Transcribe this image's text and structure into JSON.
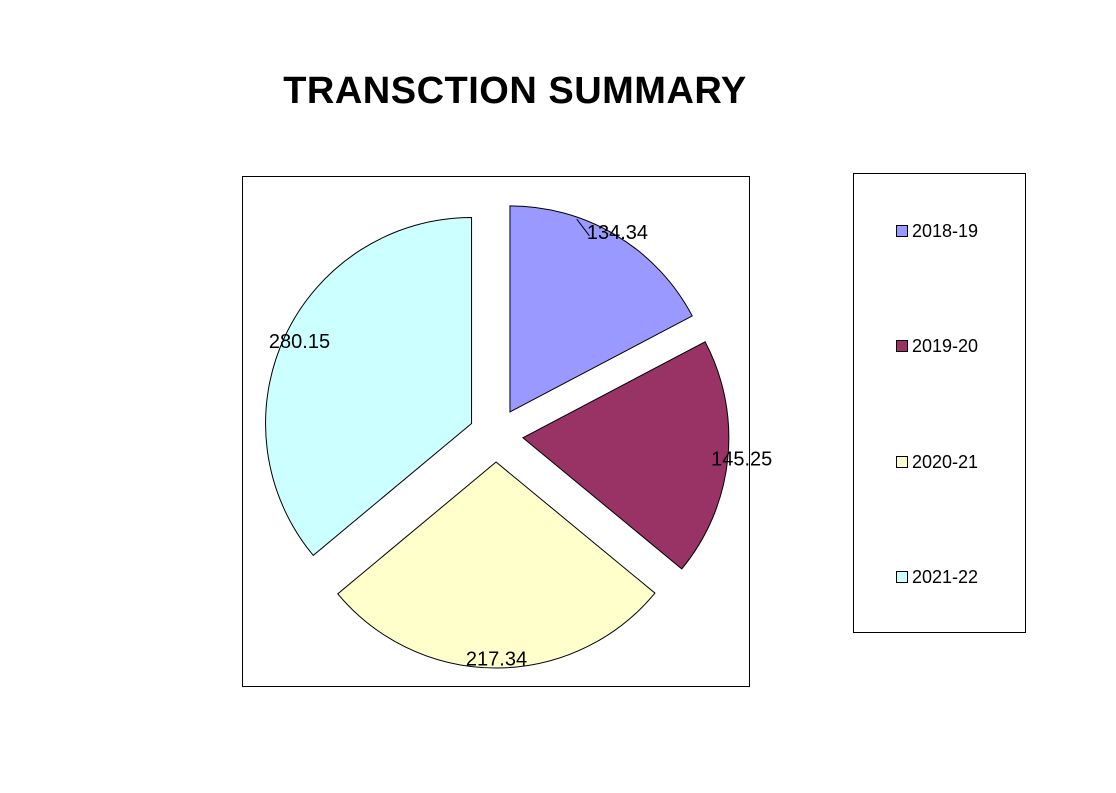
{
  "chart_data": {
    "type": "pie",
    "title": "TRANSCTION SUMMARY",
    "exploded": true,
    "legend_position": "right",
    "slices": [
      {
        "label": "2018-19",
        "value": 134.34,
        "color": "#9999ff"
      },
      {
        "label": "2019-20",
        "value": 145.25,
        "color": "#993366"
      },
      {
        "label": "2020-21",
        "value": 217.34,
        "color": "#ffffcc"
      },
      {
        "label": "2021-22",
        "value": 280.15,
        "color": "#ccffff"
      }
    ]
  },
  "legend": {
    "items": [
      {
        "label": "2018-19",
        "color": "#9999ff"
      },
      {
        "label": "2019-20",
        "color": "#993366"
      },
      {
        "label": "2020-21",
        "color": "#ffffcc"
      },
      {
        "label": "2021-22",
        "color": "#ccffff"
      }
    ]
  }
}
